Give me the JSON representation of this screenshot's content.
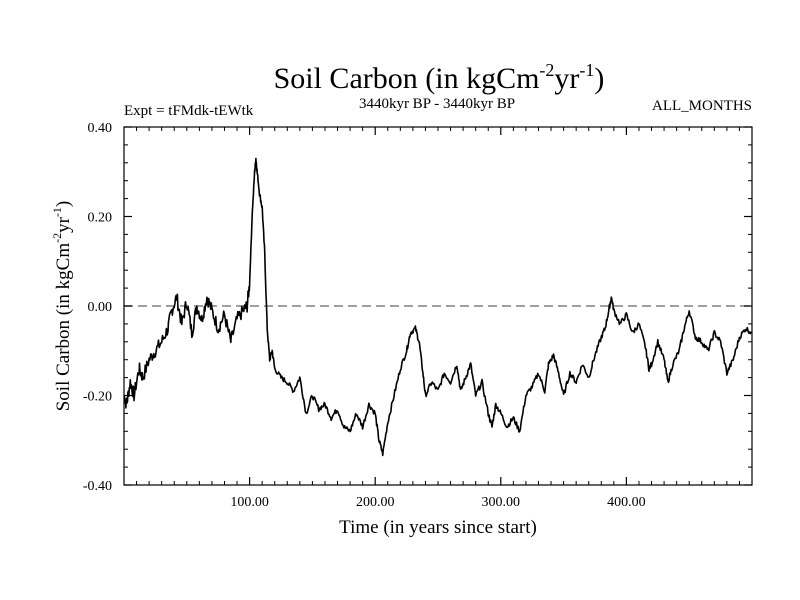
{
  "chart_data": {
    "type": "line",
    "title": {
      "base": "Soil Carbon (in kgCm",
      "exp1": "-2",
      "mid": "yr",
      "exp2": "-1",
      "end": ")"
    },
    "header": {
      "left": "Expt = tFMdk-tEWtk",
      "center": "3440kyr BP - 3440kyr BP",
      "right": "ALL_MONTHS"
    },
    "xlabel": "Time (in years since start)",
    "ylabel": {
      "base": "Soil Carbon (in kgCm",
      "exp1": "-2",
      "mid": "yr",
      "exp2": "-1",
      "end": ")"
    },
    "xlim": [
      0,
      500
    ],
    "ylim": [
      -0.4,
      0.4
    ],
    "x_ticks": [
      100,
      200,
      300,
      400
    ],
    "x_tick_labels": [
      "100.00",
      "200.00",
      "300.00",
      "400.00"
    ],
    "y_ticks": [
      -0.4,
      -0.2,
      0.0,
      0.2,
      0.4
    ],
    "y_tick_labels": [
      "-0.40",
      "-0.20",
      "0.00",
      "0.20",
      "0.40"
    ],
    "reference_line": {
      "y": 0.0,
      "style": "dashed",
      "color": "#808080"
    },
    "line_color": "#000000",
    "series": [
      {
        "name": "Soil Carbon",
        "x": [
          0,
          2,
          5,
          8,
          12,
          15,
          20,
          25,
          30,
          35,
          38,
          42,
          46,
          50,
          54,
          58,
          62,
          66,
          70,
          75,
          80,
          85,
          90,
          95,
          98,
          100,
          102,
          104,
          105,
          106,
          108,
          110,
          112,
          114,
          116,
          118,
          120,
          125,
          130,
          135,
          140,
          145,
          150,
          155,
          160,
          165,
          170,
          175,
          180,
          185,
          190,
          195,
          200,
          203,
          206,
          210,
          215,
          220,
          225,
          228,
          232,
          235,
          238,
          240,
          245,
          250,
          255,
          260,
          265,
          268,
          272,
          276,
          280,
          285,
          290,
          293,
          296,
          300,
          305,
          310,
          315,
          320,
          325,
          330,
          335,
          338,
          342,
          346,
          350,
          355,
          360,
          365,
          370,
          375,
          380,
          383,
          386,
          388,
          390,
          395,
          400,
          405,
          410,
          415,
          418,
          420,
          425,
          430,
          433,
          437,
          442,
          446,
          450,
          455,
          460,
          465,
          470,
          475,
          480,
          485,
          490,
          495,
          500
        ],
        "y": [
          -0.2,
          -0.22,
          -0.17,
          -0.2,
          -0.14,
          -0.16,
          -0.12,
          -0.1,
          -0.08,
          -0.05,
          -0.01,
          0.02,
          -0.04,
          0.01,
          -0.06,
          0.0,
          -0.03,
          0.02,
          -0.01,
          -0.05,
          -0.02,
          -0.08,
          -0.03,
          -0.01,
          0.0,
          0.05,
          0.2,
          0.3,
          0.33,
          0.3,
          0.25,
          0.22,
          0.12,
          -0.05,
          -0.12,
          -0.1,
          -0.14,
          -0.16,
          -0.17,
          -0.19,
          -0.16,
          -0.24,
          -0.2,
          -0.23,
          -0.22,
          -0.25,
          -0.23,
          -0.27,
          -0.28,
          -0.24,
          -0.27,
          -0.22,
          -0.24,
          -0.3,
          -0.33,
          -0.26,
          -0.2,
          -0.14,
          -0.1,
          -0.06,
          -0.05,
          -0.08,
          -0.15,
          -0.2,
          -0.17,
          -0.19,
          -0.15,
          -0.17,
          -0.13,
          -0.19,
          -0.16,
          -0.13,
          -0.2,
          -0.17,
          -0.24,
          -0.27,
          -0.22,
          -0.24,
          -0.27,
          -0.25,
          -0.28,
          -0.2,
          -0.18,
          -0.15,
          -0.19,
          -0.13,
          -0.11,
          -0.15,
          -0.2,
          -0.15,
          -0.17,
          -0.13,
          -0.16,
          -0.11,
          -0.07,
          -0.05,
          -0.01,
          0.02,
          -0.01,
          -0.04,
          -0.02,
          -0.06,
          -0.04,
          -0.09,
          -0.14,
          -0.13,
          -0.08,
          -0.12,
          -0.17,
          -0.13,
          -0.1,
          -0.05,
          -0.01,
          -0.07,
          -0.08,
          -0.1,
          -0.06,
          -0.08,
          -0.15,
          -0.12,
          -0.07,
          -0.05,
          -0.06
        ]
      }
    ]
  }
}
